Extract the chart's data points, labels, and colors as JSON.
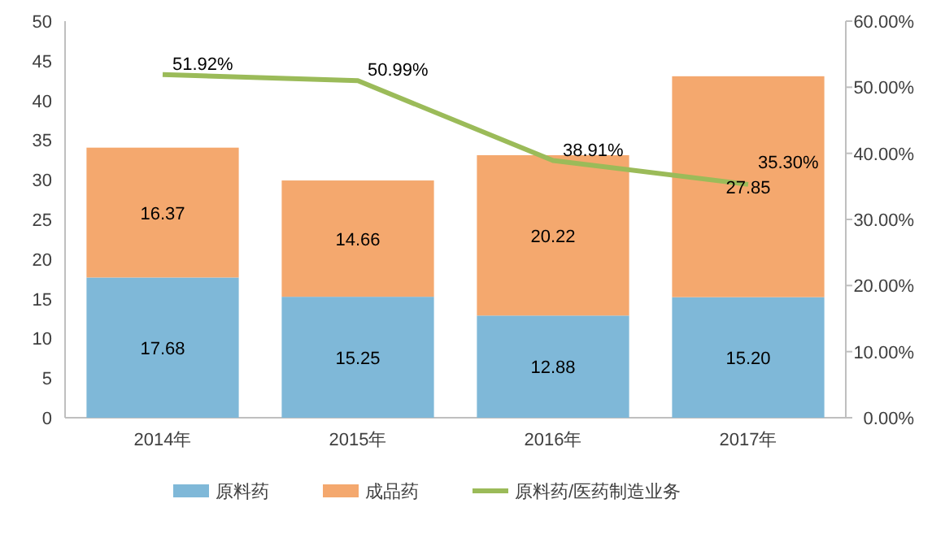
{
  "chart_data": {
    "type": "bar",
    "stacked": true,
    "categories": [
      "2014年",
      "2015年",
      "2016年",
      "2017年"
    ],
    "series": [
      {
        "name": "原料药",
        "color": "#7fb8d8",
        "values": [
          17.68,
          15.25,
          12.88,
          15.2
        ],
        "value_labels": [
          "17.68",
          "15.25",
          "12.88",
          "15.20"
        ]
      },
      {
        "name": "成品药",
        "color": "#f4a86e",
        "values": [
          16.37,
          14.66,
          20.22,
          27.85
        ],
        "value_labels": [
          "16.37",
          "14.66",
          "20.22",
          "27.85"
        ]
      },
      {
        "name": "原料药/医药制造业务",
        "type": "line",
        "axis": "y2",
        "color": "#9bbb59",
        "values": [
          51.92,
          50.99,
          38.91,
          35.3
        ],
        "value_labels": [
          "51.92%",
          "50.99%",
          "38.91%",
          "35.30%"
        ]
      }
    ],
    "ylim": [
      0,
      50
    ],
    "yticks": [
      0,
      5,
      10,
      15,
      20,
      25,
      30,
      35,
      40,
      45,
      50
    ],
    "y2lim": [
      0,
      60
    ],
    "y2ticks": [
      {
        "value": 0,
        "label": "0.00%"
      },
      {
        "value": 10,
        "label": "10.00%"
      },
      {
        "value": 20,
        "label": "20.00%"
      },
      {
        "value": 30,
        "label": "30.00%"
      },
      {
        "value": 40,
        "label": "40.00%"
      },
      {
        "value": 50,
        "label": "50.00%"
      },
      {
        "value": 60,
        "label": "60.00%"
      }
    ],
    "legend": "bottom",
    "marker": "none"
  }
}
